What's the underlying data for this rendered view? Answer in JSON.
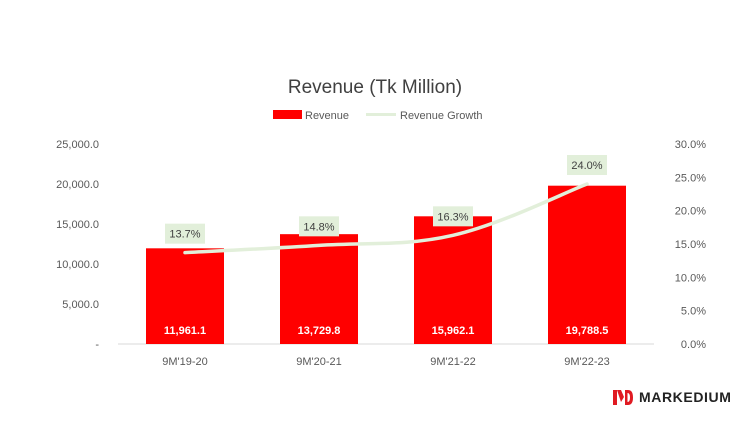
{
  "colors": {
    "bar": "#ff0000",
    "line": "#e2efda",
    "label_box": "#e2efda",
    "axis_text": "#595959",
    "title_text": "#404040",
    "brand_text": "#222222",
    "brand_mark": "#e01a22"
  },
  "brand": {
    "name": "MARKEDIUM",
    "icon": "md-logo-icon"
  },
  "chart_data": {
    "type": "bar",
    "title": "Revenue (Tk Million)",
    "legend_position": "top",
    "grid": false,
    "categories": [
      "9M'19-20",
      "9M'20-21",
      "9M'21-22",
      "9M'22-23"
    ],
    "series": [
      {
        "name": "Revenue",
        "type": "bar",
        "axis": "left",
        "values": [
          11961.1,
          13729.8,
          15962.1,
          19788.5
        ],
        "labels": [
          "11,961.1",
          "13,729.8",
          "15,962.1",
          "19,788.5"
        ]
      },
      {
        "name": "Revenue Growth",
        "type": "line",
        "axis": "right",
        "values": [
          13.7,
          14.8,
          16.3,
          24.0
        ],
        "labels": [
          "13.7%",
          "14.8%",
          "16.3%",
          "24.0%"
        ]
      }
    ],
    "y_left": {
      "range": [
        0,
        25000
      ],
      "ticks": [
        0,
        5000,
        10000,
        15000,
        20000,
        25000
      ],
      "tick_labels": [
        "-",
        "5,000.0",
        "10,000.0",
        "15,000.0",
        "20,000.0",
        "25,000.0"
      ]
    },
    "y_right": {
      "range": [
        0,
        30
      ],
      "ticks": [
        0,
        5,
        10,
        15,
        20,
        25,
        30
      ],
      "tick_labels": [
        "0.0%",
        "5.0%",
        "10.0%",
        "15.0%",
        "20.0%",
        "25.0%",
        "30.0%"
      ]
    }
  }
}
